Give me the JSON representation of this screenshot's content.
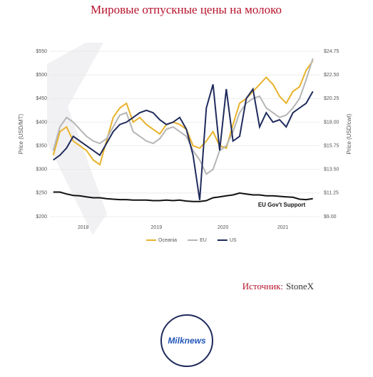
{
  "page_title": "Мировые отпускные цены на молоко",
  "source_label": "Источник:",
  "source_name": "StoneX",
  "logo": "Milknews",
  "chart_data": {
    "type": "line",
    "ylabel": "Price (USD/MT)",
    "y2label": "Price (USD/cwt)",
    "annotation": "EU Gov't Support",
    "x": [
      2017.9,
      2018.0,
      2018.1,
      2018.2,
      2018.3,
      2018.4,
      2018.5,
      2018.6,
      2018.7,
      2018.8,
      2018.9,
      2019.0,
      2019.1,
      2019.2,
      2019.3,
      2019.4,
      2019.5,
      2019.6,
      2019.7,
      2019.8,
      2019.9,
      2020.0,
      2020.1,
      2020.2,
      2020.3,
      2020.4,
      2020.5,
      2020.6,
      2020.7,
      2020.8,
      2020.9,
      2021.0,
      2021.1,
      2021.2,
      2021.3,
      2021.4,
      2021.5,
      2021.6,
      2021.7,
      2021.8
    ],
    "xlim": [
      2017.85,
      2021.9
    ],
    "xticks": [
      {
        "value": 2018.35,
        "label": "2018"
      },
      {
        "value": 2019.45,
        "label": "2019"
      },
      {
        "value": 2020.45,
        "label": "2020"
      },
      {
        "value": 2021.35,
        "label": "2021"
      }
    ],
    "ylim": [
      200,
      550
    ],
    "yticks": [
      {
        "value": 200,
        "label": "$200"
      },
      {
        "value": 250,
        "label": "$250"
      },
      {
        "value": 300,
        "label": "$300"
      },
      {
        "value": 350,
        "label": "$350"
      },
      {
        "value": 400,
        "label": "$400"
      },
      {
        "value": 450,
        "label": "$450"
      },
      {
        "value": 500,
        "label": "$500"
      },
      {
        "value": 550,
        "label": "$550"
      }
    ],
    "y2lim": [
      9,
      24.75
    ],
    "y2ticks": [
      {
        "value": 9,
        "label": "$9.00"
      },
      {
        "value": 11.25,
        "label": "$11.25"
      },
      {
        "value": 13.5,
        "label": "$13.50"
      },
      {
        "value": 15.75,
        "label": "$15.75"
      },
      {
        "value": 18,
        "label": "$18.00"
      },
      {
        "value": 20.25,
        "label": "$20.25"
      },
      {
        "value": 22.5,
        "label": "$22.50"
      },
      {
        "value": 24.75,
        "label": "$24.75"
      }
    ],
    "grid": true,
    "series": [
      {
        "name": "Oceania",
        "color": "#e8b22a",
        "legend": true,
        "values": [
          330,
          380,
          390,
          360,
          350,
          340,
          320,
          310,
          360,
          410,
          430,
          440,
          400,
          410,
          395,
          385,
          375,
          395,
          400,
          395,
          385,
          350,
          345,
          360,
          380,
          350,
          345,
          395,
          440,
          450,
          465,
          480,
          495,
          480,
          455,
          440,
          465,
          475,
          510,
          530
        ]
      },
      {
        "name": "EU",
        "color": "#b5b5b5",
        "legend": true,
        "values": [
          340,
          390,
          410,
          400,
          385,
          370,
          360,
          355,
          365,
          390,
          415,
          420,
          380,
          370,
          360,
          355,
          365,
          385,
          390,
          380,
          370,
          340,
          320,
          290,
          300,
          340,
          350,
          380,
          420,
          440,
          450,
          455,
          430,
          420,
          410,
          415,
          430,
          450,
          490,
          535
        ]
      },
      {
        "name": "US",
        "color": "#1f2b5c",
        "legend": true,
        "axis": "y2",
        "values": [
          14.4,
          14.85,
          15.53,
          16.65,
          16.2,
          15.75,
          15.3,
          14.85,
          15.98,
          17.1,
          17.78,
          18.0,
          18.45,
          18.9,
          19.13,
          18.9,
          18.23,
          17.78,
          18.0,
          18.45,
          17.33,
          14.85,
          10.58,
          19.35,
          21.6,
          15.3,
          21.15,
          16.2,
          16.65,
          20.25,
          21.15,
          17.55,
          18.9,
          18.0,
          18.23,
          17.55,
          18.9,
          19.35,
          19.8,
          20.93
        ]
      },
      {
        "color": "#111111",
        "legend": false,
        "values": [
          252,
          252,
          248,
          245,
          244,
          242,
          240,
          240,
          238,
          237,
          236,
          236,
          235,
          235,
          235,
          234,
          234,
          235,
          234,
          235,
          233,
          232,
          232,
          234,
          240,
          242,
          244,
          246,
          250,
          248,
          246,
          246,
          244,
          244,
          243,
          242,
          241,
          237,
          236,
          238
        ]
      }
    ]
  }
}
